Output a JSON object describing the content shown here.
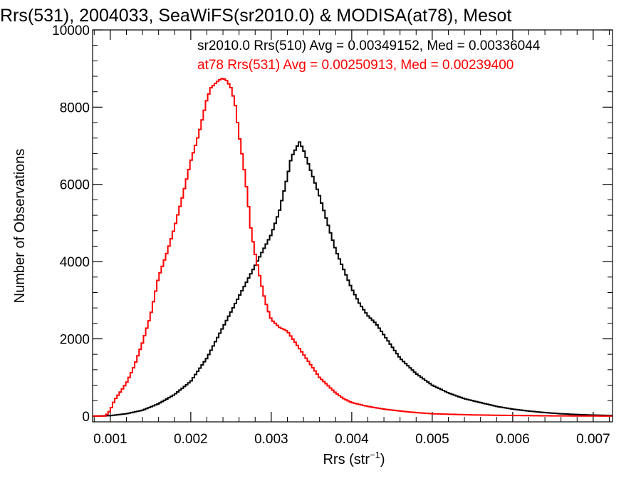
{
  "chart_data": {
    "type": "line",
    "title": "Rrs(531), 2004033, SeaWiFS(sr2010.0) & MODISA(at78), Mesot",
    "xlabel_main": "Rrs (str",
    "xlabel_sup": "−1",
    "xlabel_close": ")",
    "ylabel": "Number of Observations",
    "xlim": [
      0.00078,
      0.00724
    ],
    "ylim": [
      -150,
      10000
    ],
    "x_ticks": [
      0.001,
      0.002,
      0.003,
      0.004,
      0.005,
      0.006,
      0.007
    ],
    "x_tick_labels": [
      "0.001",
      "0.002",
      "0.003",
      "0.004",
      "0.005",
      "0.006",
      "0.007"
    ],
    "y_ticks": [
      0,
      2000,
      4000,
      6000,
      8000,
      10000
    ],
    "y_tick_labels": [
      "0",
      "2000",
      "4000",
      "6000",
      "8000",
      "10000"
    ],
    "legend": [
      {
        "text": "sr2010.0 Rrs(510) Avg = 0.00349152, Med = 0.00336044",
        "color": "#000000"
      },
      {
        "text": "at78 Rrs(531) Avg = 0.00250913, Med = 0.00239400",
        "color": "#ff0000"
      }
    ],
    "series": [
      {
        "color": "#000000",
        "points": [
          [
            0.00078,
            0
          ],
          [
            0.001,
            10
          ],
          [
            0.0012,
            60
          ],
          [
            0.0014,
            150
          ],
          [
            0.0016,
            320
          ],
          [
            0.0018,
            560
          ],
          [
            0.002,
            900
          ],
          [
            0.0022,
            1500
          ],
          [
            0.0024,
            2300
          ],
          [
            0.0026,
            3100
          ],
          [
            0.0028,
            3900
          ],
          [
            0.003,
            4700
          ],
          [
            0.0031,
            5300
          ],
          [
            0.0032,
            6200
          ],
          [
            0.00325,
            6700
          ],
          [
            0.0033,
            6900
          ],
          [
            0.00335,
            7100
          ],
          [
            0.0034,
            6900
          ],
          [
            0.00345,
            6600
          ],
          [
            0.0035,
            6300
          ],
          [
            0.0036,
            5700
          ],
          [
            0.0037,
            5000
          ],
          [
            0.0038,
            4300
          ],
          [
            0.0039,
            3800
          ],
          [
            0.004,
            3300
          ],
          [
            0.0041,
            2900
          ],
          [
            0.0042,
            2600
          ],
          [
            0.0043,
            2400
          ],
          [
            0.0044,
            2100
          ],
          [
            0.0045,
            1800
          ],
          [
            0.0046,
            1500
          ],
          [
            0.0048,
            1100
          ],
          [
            0.005,
            800
          ],
          [
            0.0052,
            600
          ],
          [
            0.0054,
            450
          ],
          [
            0.0056,
            350
          ],
          [
            0.0058,
            250
          ],
          [
            0.006,
            180
          ],
          [
            0.0062,
            130
          ],
          [
            0.0064,
            90
          ],
          [
            0.0066,
            60
          ],
          [
            0.0068,
            40
          ],
          [
            0.007,
            25
          ],
          [
            0.00724,
            15
          ]
        ]
      },
      {
        "color": "#ff0000",
        "points": [
          [
            0.00078,
            0
          ],
          [
            0.00094,
            0
          ],
          [
            0.001,
            150
          ],
          [
            0.00105,
            400
          ],
          [
            0.0011,
            550
          ],
          [
            0.0012,
            850
          ],
          [
            0.0013,
            1300
          ],
          [
            0.0014,
            1900
          ],
          [
            0.0015,
            2600
          ],
          [
            0.0016,
            3600
          ],
          [
            0.0017,
            4200
          ],
          [
            0.0018,
            4900
          ],
          [
            0.0019,
            5700
          ],
          [
            0.002,
            6600
          ],
          [
            0.0021,
            7300
          ],
          [
            0.00215,
            7750
          ],
          [
            0.0022,
            8200
          ],
          [
            0.00225,
            8500
          ],
          [
            0.0023,
            8600
          ],
          [
            0.00235,
            8700
          ],
          [
            0.0024,
            8750
          ],
          [
            0.00245,
            8680
          ],
          [
            0.0025,
            8500
          ],
          [
            0.00255,
            8100
          ],
          [
            0.0026,
            7300
          ],
          [
            0.00265,
            6600
          ],
          [
            0.0027,
            5800
          ],
          [
            0.00275,
            4800
          ],
          [
            0.0028,
            4200
          ],
          [
            0.00285,
            3700
          ],
          [
            0.0029,
            3200
          ],
          [
            0.00295,
            2800
          ],
          [
            0.003,
            2500
          ],
          [
            0.0031,
            2300
          ],
          [
            0.0032,
            2200
          ],
          [
            0.0033,
            1900
          ],
          [
            0.0034,
            1600
          ],
          [
            0.0035,
            1300
          ],
          [
            0.0036,
            1000
          ],
          [
            0.0037,
            800
          ],
          [
            0.0038,
            600
          ],
          [
            0.0039,
            450
          ],
          [
            0.004,
            350
          ],
          [
            0.0042,
            250
          ],
          [
            0.0044,
            180
          ],
          [
            0.0046,
            130
          ],
          [
            0.0048,
            90
          ],
          [
            0.005,
            60
          ],
          [
            0.0055,
            30
          ],
          [
            0.006,
            15
          ],
          [
            0.0065,
            5
          ],
          [
            0.00724,
            0
          ]
        ]
      }
    ]
  }
}
